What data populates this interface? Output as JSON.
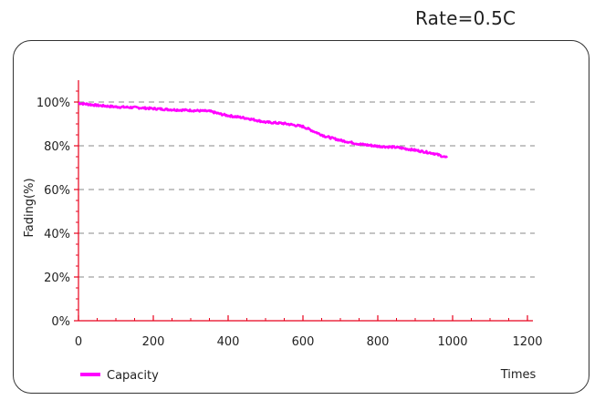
{
  "rate_label": "Rate=0.5C",
  "chart_data": {
    "type": "line",
    "ylabel": "Fading(%)",
    "xlabel": "Times",
    "xlim": [
      0,
      1200
    ],
    "ylim": [
      0,
      110
    ],
    "x_ticks": [
      0,
      200,
      400,
      600,
      800,
      1000,
      1200
    ],
    "y_ticks": [
      0,
      20,
      40,
      60,
      80,
      100
    ],
    "x_tick_labels": [
      "0",
      "200",
      "400",
      "600",
      "800",
      "1000",
      "1200"
    ],
    "y_tick_labels": [
      "0%",
      "20%",
      "40%",
      "60%",
      "80%",
      "100%"
    ],
    "grid": "horizontal-dashed",
    "legend": "bottom-left",
    "series": [
      {
        "name": "Capacity",
        "color": "#ff00ff",
        "x": [
          0,
          50,
          100,
          150,
          200,
          250,
          300,
          350,
          380,
          400,
          450,
          500,
          550,
          600,
          630,
          660,
          700,
          750,
          800,
          850,
          900,
          950,
          985
        ],
        "y": [
          99.5,
          98.5,
          97.8,
          97.5,
          97.0,
          96.5,
          96.2,
          95.8,
          94.5,
          93.8,
          92.6,
          90.8,
          90.2,
          88.8,
          86.5,
          84.3,
          82.5,
          80.8,
          79.8,
          79.3,
          78.0,
          76.5,
          74.5
        ]
      }
    ]
  }
}
